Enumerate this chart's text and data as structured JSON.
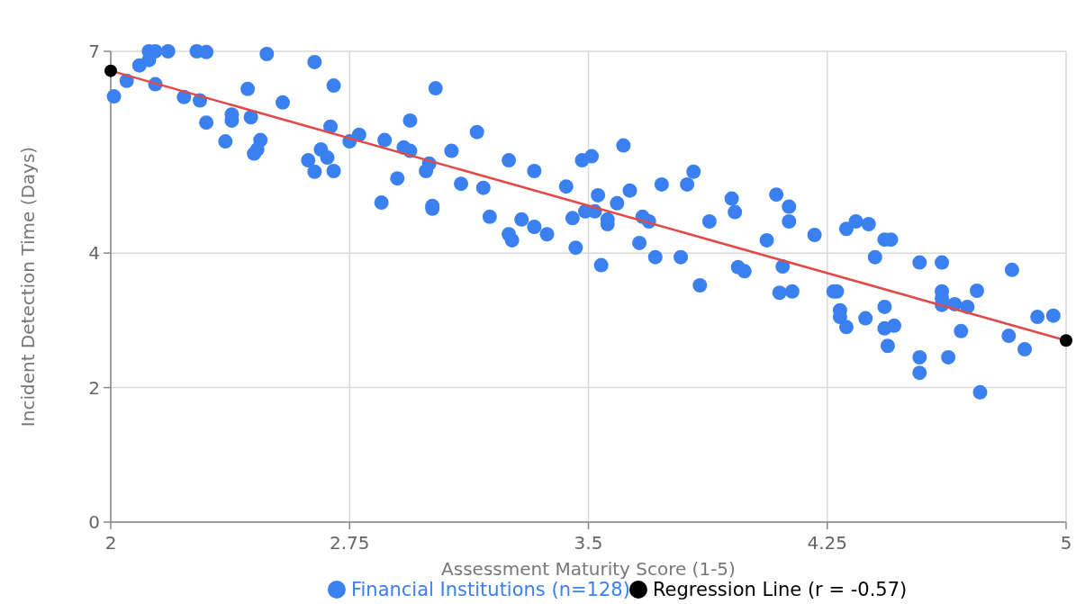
{
  "chart_data": {
    "type": "scatter",
    "xlabel": "Assessment Maturity Score (1-5)",
    "ylabel": "Incident Detection Time (Days)",
    "xlim": [
      2,
      5
    ],
    "ylim": [
      0,
      7
    ],
    "xticks": [
      2,
      2.75,
      3.5,
      4.25,
      5
    ],
    "yticks": [
      0,
      2,
      4,
      7
    ],
    "grid": true,
    "legend": "bottom",
    "marker": "circle",
    "series": [
      {
        "name": "Financial Institutions (n=128)",
        "color": "#3a80f0",
        "x": [
          2.01,
          2.05,
          2.09,
          2.12,
          2.12,
          2.14,
          2.14,
          2.18,
          2.23,
          2.27,
          2.28,
          2.3,
          2.3,
          2.36,
          2.38,
          2.38,
          2.43,
          2.44,
          2.45,
          2.46,
          2.47,
          2.49,
          2.54,
          2.62,
          2.64,
          2.64,
          2.66,
          2.68,
          2.7,
          2.69,
          2.7,
          2.75,
          2.78,
          2.85,
          2.86,
          2.9,
          2.92,
          2.94,
          2.94,
          2.99,
          3.0,
          3.01,
          3.01,
          3.02,
          3.07,
          3.1,
          3.15,
          3.17,
          3.19,
          3.25,
          3.25,
          3.26,
          3.29,
          3.33,
          3.33,
          3.37,
          3.43,
          3.45,
          3.46,
          3.48,
          3.49,
          3.51,
          3.52,
          3.53,
          3.56,
          3.56,
          3.54,
          3.59,
          3.61,
          3.63,
          3.66,
          3.67,
          3.69,
          3.71,
          3.73,
          3.79,
          3.81,
          3.83,
          3.85,
          3.88,
          3.95,
          3.96,
          3.97,
          3.99,
          4.06,
          4.09,
          4.1,
          4.11,
          4.13,
          4.13,
          4.14,
          4.21,
          4.27,
          4.28,
          4.29,
          4.29,
          4.31,
          4.31,
          4.34,
          4.37,
          4.38,
          4.4,
          4.43,
          4.43,
          4.43,
          4.44,
          4.45,
          4.46,
          4.54,
          4.54,
          4.54,
          4.61,
          4.61,
          4.61,
          4.61,
          4.63,
          4.65,
          4.67,
          4.69,
          4.72,
          4.73,
          4.82,
          4.83,
          4.87,
          4.91,
          4.96
        ],
        "values": [
          6.33,
          6.56,
          6.79,
          6.87,
          7.0,
          7.0,
          6.51,
          7.0,
          6.32,
          7.0,
          6.27,
          6.99,
          5.94,
          5.66,
          6.06,
          5.97,
          6.44,
          6.02,
          5.48,
          5.54,
          5.68,
          6.96,
          6.24,
          5.38,
          6.84,
          5.21,
          5.54,
          5.42,
          6.49,
          5.88,
          5.22,
          5.66,
          5.76,
          4.75,
          5.68,
          5.11,
          5.57,
          5.52,
          5.97,
          5.22,
          5.33,
          4.7,
          4.66,
          6.45,
          5.52,
          5.03,
          5.8,
          4.97,
          4.54,
          5.38,
          4.28,
          4.19,
          4.5,
          5.22,
          4.39,
          4.28,
          4.99,
          4.52,
          4.08,
          5.38,
          4.62,
          5.44,
          4.62,
          4.86,
          4.43,
          4.5,
          3.82,
          4.74,
          5.6,
          4.93,
          4.15,
          4.54,
          4.47,
          3.94,
          5.02,
          3.94,
          5.02,
          5.21,
          3.52,
          4.47,
          4.81,
          4.61,
          3.79,
          3.73,
          4.19,
          4.87,
          3.41,
          3.8,
          4.69,
          4.47,
          3.43,
          4.27,
          3.43,
          3.43,
          3.05,
          3.15,
          2.9,
          4.36,
          4.47,
          3.03,
          4.43,
          3.94,
          2.88,
          3.2,
          4.2,
          2.62,
          4.2,
          2.92,
          2.45,
          2.22,
          3.86,
          3.86,
          3.43,
          3.33,
          3.23,
          2.45,
          3.24,
          2.84,
          3.2,
          3.44,
          1.93,
          2.77,
          3.75,
          2.57,
          3.05,
          3.07
        ]
      },
      {
        "name": "Regression Line (r = -0.57)",
        "type": "line",
        "color": "#e24a4a",
        "colors": [
          "#000000",
          "#000000"
        ],
        "x": [
          2,
          5
        ],
        "values": [
          6.71,
          2.7
        ]
      }
    ]
  }
}
